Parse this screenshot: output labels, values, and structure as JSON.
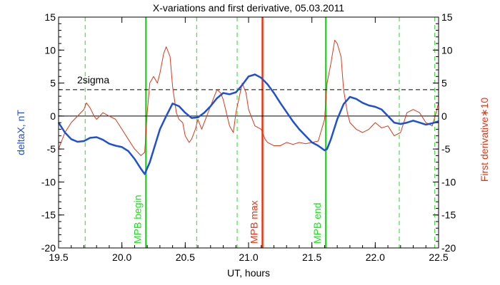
{
  "chart_data": {
    "type": "line",
    "title": "X-variations and first derivative, 05.03.2011",
    "xlabel": "UT, hours",
    "ylabel_left": "deltaX, nT",
    "ylabel_right": "First derivative∗10",
    "xlim": [
      19.5,
      22.5
    ],
    "ylim_left": [
      -20,
      15
    ],
    "ylim_right": [
      -20,
      15
    ],
    "x_ticks": [
      "19.5",
      "20.0",
      "20.5",
      "21.0",
      "21.5",
      "22.0",
      "22.5"
    ],
    "y_ticks": [
      "-20",
      "-15",
      "-10",
      "-5",
      "0",
      "5",
      "10",
      "15"
    ],
    "grid": false,
    "colors": {
      "deltaX": "#1f4fd6",
      "derivative": "#d93a1a",
      "green_marker": "#22dd22",
      "red_marker": "#ee3311",
      "axes": "#000000"
    },
    "threshold": {
      "label": "2sigma",
      "value": 4.0
    },
    "zero_line": 0,
    "series": [
      {
        "key": "deltaX",
        "axis": "left",
        "x": [
          19.5,
          19.55,
          19.6,
          19.65,
          19.7,
          19.75,
          19.8,
          19.85,
          19.9,
          19.95,
          20.0,
          20.05,
          20.1,
          20.15,
          20.18,
          20.22,
          20.26,
          20.3,
          20.35,
          20.4,
          20.45,
          20.5,
          20.55,
          20.6,
          20.65,
          20.7,
          20.75,
          20.8,
          20.85,
          20.9,
          20.95,
          21.0,
          21.05,
          21.1,
          21.15,
          21.2,
          21.25,
          21.3,
          21.35,
          21.4,
          21.45,
          21.5,
          21.55,
          21.6,
          21.62,
          21.65,
          21.7,
          21.75,
          21.8,
          21.85,
          21.9,
          21.95,
          22.0,
          22.05,
          22.1,
          22.15,
          22.2,
          22.25,
          22.3,
          22.35,
          22.4,
          22.45,
          22.5
        ],
        "y": [
          -1.0,
          -2.5,
          -3.5,
          -3.9,
          -3.8,
          -3.3,
          -3.2,
          -3.6,
          -4.2,
          -4.5,
          -4.7,
          -5.3,
          -6.5,
          -8.0,
          -8.8,
          -7.0,
          -4.5,
          -2.0,
          0.0,
          1.9,
          1.5,
          0.5,
          -0.3,
          -0.2,
          0.5,
          1.5,
          2.7,
          3.5,
          3.3,
          3.6,
          4.7,
          6.0,
          6.3,
          5.8,
          4.8,
          3.5,
          2.0,
          0.6,
          -0.8,
          -2.0,
          -3.0,
          -4.0,
          -4.5,
          -5.2,
          -5.0,
          -3.5,
          -0.5,
          1.8,
          2.9,
          2.6,
          2.0,
          1.6,
          1.4,
          1.0,
          0.0,
          -1.0,
          -1.2,
          -1.0,
          -0.7,
          -1.0,
          -1.3,
          -1.1,
          -0.8
        ]
      },
      {
        "key": "derivative",
        "axis": "right",
        "x": [
          19.5,
          19.55,
          19.6,
          19.65,
          19.7,
          19.72,
          19.75,
          19.78,
          19.8,
          19.85,
          19.9,
          19.95,
          20.0,
          20.05,
          20.1,
          20.15,
          20.18,
          20.2,
          20.22,
          20.25,
          20.28,
          20.3,
          20.33,
          20.35,
          20.38,
          20.4,
          20.43,
          20.45,
          20.48,
          20.5,
          20.53,
          20.55,
          20.58,
          20.6,
          20.63,
          20.65,
          20.7,
          20.73,
          20.75,
          20.78,
          20.8,
          20.85,
          20.88,
          20.9,
          20.95,
          20.98,
          21.0,
          21.05,
          21.1,
          21.13,
          21.15,
          21.2,
          21.25,
          21.3,
          21.35,
          21.4,
          21.45,
          21.5,
          21.55,
          21.6,
          21.62,
          21.65,
          21.68,
          21.7,
          21.73,
          21.75,
          21.78,
          21.8,
          21.85,
          21.9,
          21.95,
          22.0,
          22.05,
          22.1,
          22.15,
          22.2,
          22.25,
          22.3,
          22.35,
          22.4,
          22.45,
          22.48,
          22.5
        ],
        "y": [
          -5.0,
          -2.5,
          -1.0,
          0.0,
          1.0,
          2.0,
          1.2,
          0.0,
          -0.5,
          0.5,
          0.0,
          -0.5,
          -2.0,
          -3.5,
          -5.0,
          -6.0,
          -5.5,
          0.5,
          5.0,
          6.0,
          5.0,
          6.5,
          9.5,
          10.5,
          9.0,
          4.5,
          0.5,
          -0.5,
          -1.0,
          -3.0,
          -4.0,
          -3.5,
          -2.0,
          -0.5,
          -2.0,
          -1.0,
          1.5,
          3.0,
          4.0,
          3.5,
          2.5,
          -1.5,
          -2.5,
          0.5,
          5.0,
          3.5,
          1.0,
          -1.5,
          -2.0,
          -3.5,
          -4.0,
          -4.5,
          -4.5,
          -4.0,
          -4.3,
          -4.0,
          -4.2,
          -4.0,
          -3.8,
          -0.5,
          5.0,
          8.0,
          11.5,
          11.0,
          9.0,
          4.0,
          0.5,
          -1.0,
          -2.0,
          -2.5,
          -2.0,
          -1.0,
          -1.8,
          -1.5,
          -3.0,
          -2.5,
          0.5,
          1.0,
          0.5,
          -1.0,
          -1.5,
          0.5,
          2.0
        ]
      }
    ],
    "vertical_markers": [
      {
        "x": 19.71,
        "style": "dashed-green"
      },
      {
        "x": 20.19,
        "style": "solid-green",
        "label": "MPB begin"
      },
      {
        "x": 20.59,
        "style": "dashed-green"
      },
      {
        "x": 20.91,
        "style": "dashed-green"
      },
      {
        "x": 21.11,
        "style": "solid-red",
        "label": "MPB max"
      },
      {
        "x": 21.61,
        "style": "solid-green",
        "label": "MPB end"
      },
      {
        "x": 22.19,
        "style": "dashed-green"
      },
      {
        "x": 22.47,
        "style": "dashed-green"
      }
    ]
  }
}
